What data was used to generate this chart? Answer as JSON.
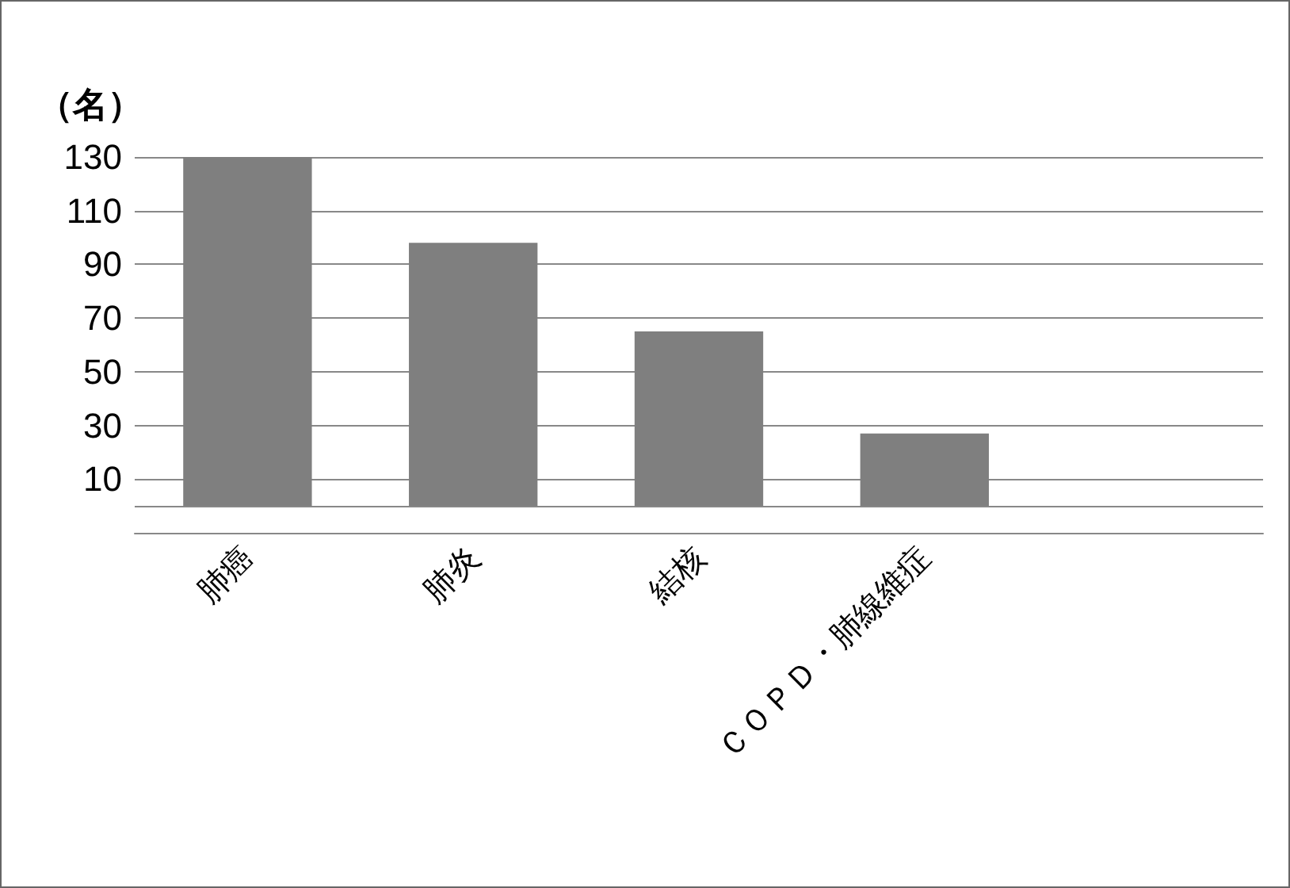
{
  "chart_data": {
    "type": "bar",
    "ylabel": "（名）",
    "categories": [
      "肺癌",
      "肺炎",
      "結核",
      "ＣＯＰＤ・肺線維症",
      null
    ],
    "values": [
      130,
      98,
      65,
      27,
      null
    ],
    "color": "#7f7f7f",
    "ylim": [
      -10,
      130
    ],
    "yticks": [
      {
        "value": -10,
        "label": null
      },
      {
        "value": 0,
        "label": null
      },
      10,
      30,
      50,
      70,
      90,
      110,
      130
    ],
    "grid": "y"
  }
}
